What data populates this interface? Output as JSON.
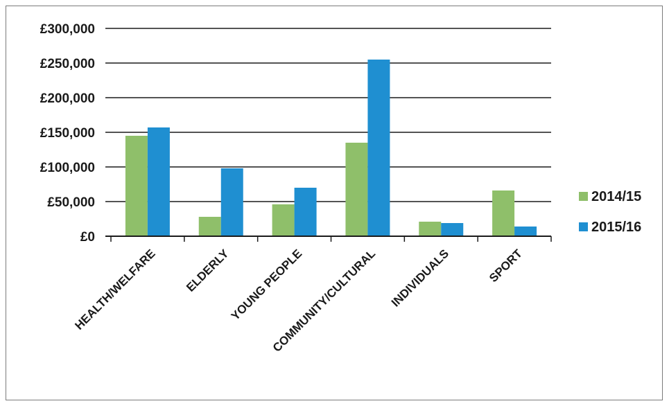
{
  "chart_data": {
    "type": "bar",
    "categories": [
      "HEALTH/WELFARE",
      "ELDERLY",
      "YOUNG PEOPLE",
      "COMMUNITY/CULTURAL",
      "INDIVIDUALS",
      "SPORT"
    ],
    "series": [
      {
        "name": "2014/15",
        "color": "#8fbf6a",
        "values": [
          145000,
          28000,
          46000,
          135000,
          21000,
          66000
        ]
      },
      {
        "name": "2015/16",
        "color": "#1f8fd1",
        "values": [
          157000,
          98000,
          70000,
          255000,
          19000,
          14000
        ]
      }
    ],
    "ylim": [
      0,
      300000
    ],
    "yticks": [
      0,
      50000,
      100000,
      150000,
      200000,
      250000,
      300000
    ],
    "ytick_labels": [
      "£0",
      "£50,000",
      "£100,000",
      "£150,000",
      "£200,000",
      "£250,000",
      "£300,000"
    ],
    "grid": true,
    "legend_position": "right"
  }
}
